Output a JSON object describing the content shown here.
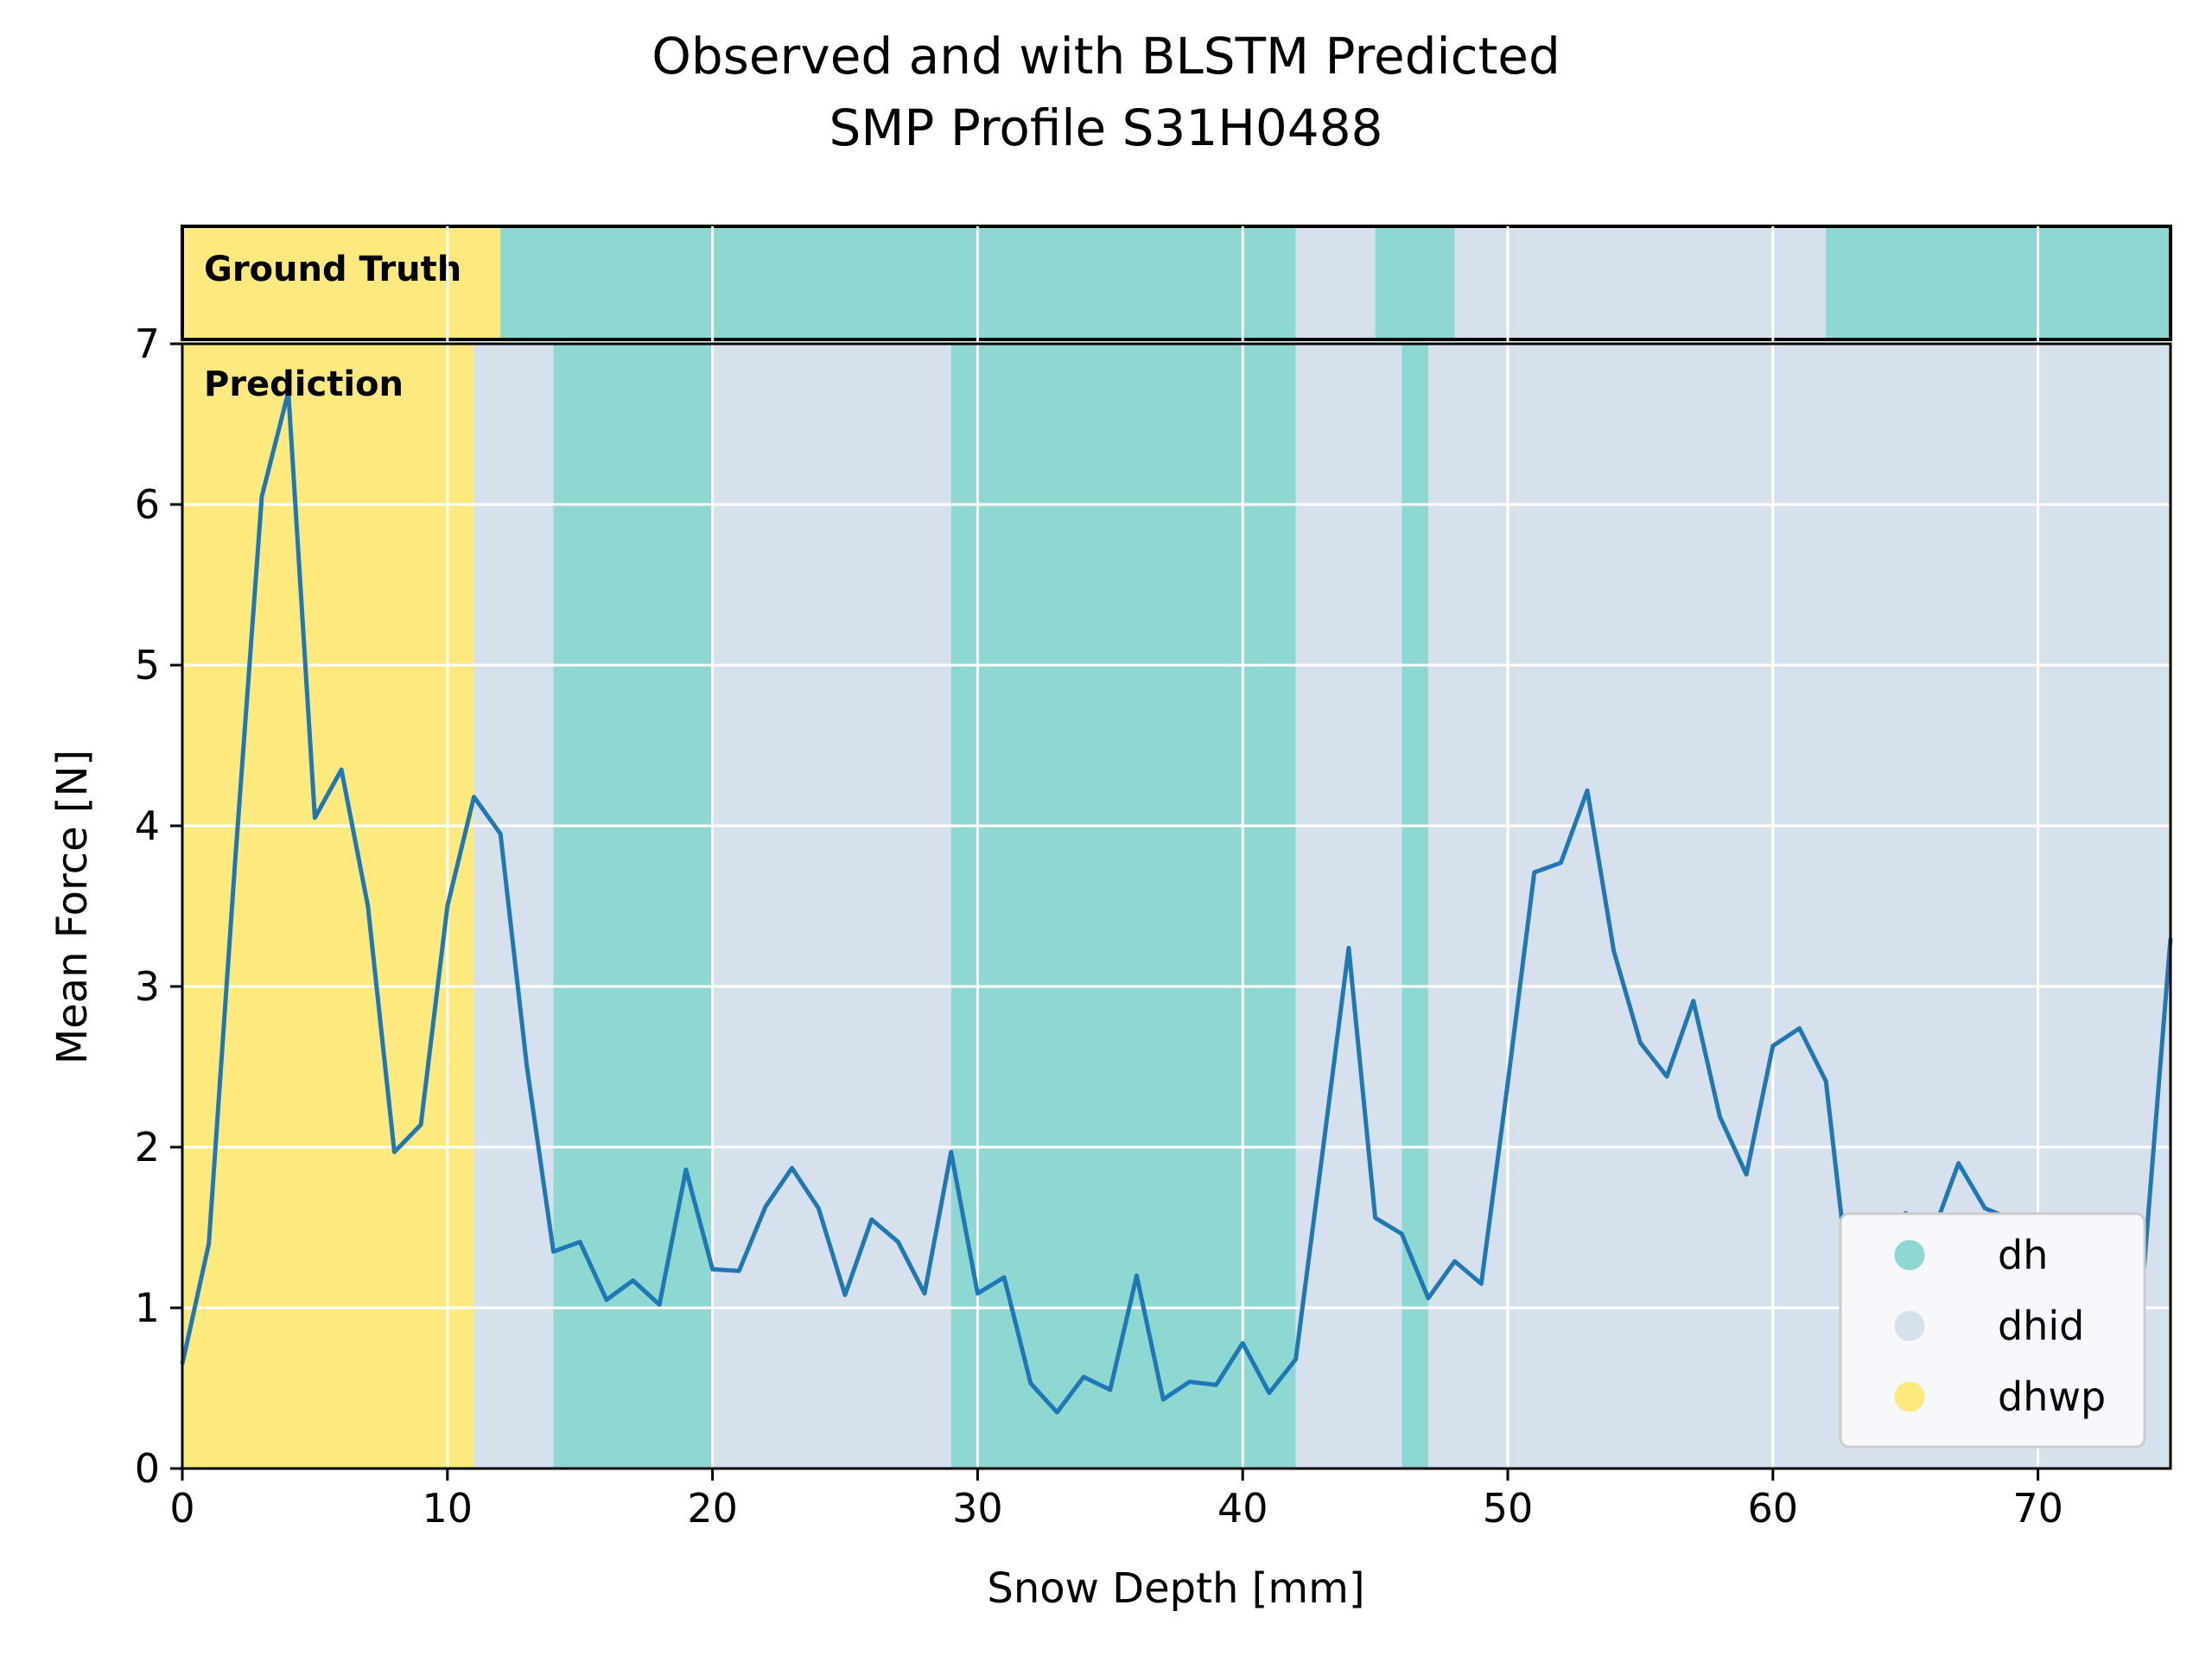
{
  "chart_data": {
    "type": "line",
    "title_lines": [
      "Observed and with BLSTM Predicted",
      "SMP Profile S31H0488"
    ],
    "xlabel": "Snow Depth [mm]",
    "ylabel": "Mean Force [N]",
    "xlim": [
      0,
      75
    ],
    "ylim": [
      0,
      7
    ],
    "xticks": [
      0,
      10,
      20,
      30,
      40,
      50,
      60,
      70
    ],
    "yticks": [
      0,
      1,
      2,
      3,
      4,
      5,
      6,
      7
    ],
    "grid": true,
    "legend_position": "lower-right",
    "panel_labels": {
      "ground_truth": "Ground Truth",
      "prediction": "Prediction"
    },
    "classes": [
      {
        "name": "dh",
        "color": "#8fd8d2"
      },
      {
        "name": "dhid",
        "color": "#d7e1ee"
      },
      {
        "name": "dhwp",
        "color": "#fde97e"
      }
    ],
    "ground_truth_segments": [
      {
        "start": 0,
        "end": 12,
        "class": "dhwp"
      },
      {
        "start": 12,
        "end": 42,
        "class": "dh"
      },
      {
        "start": 42,
        "end": 45,
        "class": "dhid"
      },
      {
        "start": 45,
        "end": 48,
        "class": "dh"
      },
      {
        "start": 48,
        "end": 62,
        "class": "dhid"
      },
      {
        "start": 62,
        "end": 75,
        "class": "dh"
      }
    ],
    "prediction_segments": [
      {
        "start": 0,
        "end": 11,
        "class": "dhwp"
      },
      {
        "start": 11,
        "end": 14,
        "class": "dhid"
      },
      {
        "start": 14,
        "end": 20,
        "class": "dh"
      },
      {
        "start": 20,
        "end": 29,
        "class": "dhid"
      },
      {
        "start": 29,
        "end": 42,
        "class": "dh"
      },
      {
        "start": 42,
        "end": 46,
        "class": "dhid"
      },
      {
        "start": 46,
        "end": 47,
        "class": "dh"
      },
      {
        "start": 47,
        "end": 75,
        "class": "dhid"
      }
    ],
    "series": [
      {
        "color": "#1f77b4",
        "x": [
          0,
          1,
          2,
          3,
          4,
          5,
          6,
          7,
          8,
          9,
          10,
          11,
          12,
          13,
          14,
          15,
          16,
          17,
          18,
          19,
          20,
          21,
          22,
          23,
          24,
          25,
          26,
          27,
          28,
          29,
          30,
          31,
          32,
          33,
          34,
          35,
          36,
          37,
          38,
          39,
          40,
          41,
          42,
          43,
          44,
          45,
          46,
          47,
          48,
          49,
          50,
          51,
          52,
          53,
          54,
          55,
          56,
          57,
          58,
          59,
          60,
          61,
          62,
          63,
          64,
          65,
          66,
          67,
          68,
          69,
          70,
          71,
          72,
          73,
          74,
          75
        ],
        "y": [
          0.65,
          1.4,
          3.8,
          6.05,
          6.7,
          4.05,
          4.35,
          3.5,
          1.97,
          2.14,
          3.5,
          4.18,
          3.95,
          2.5,
          1.35,
          1.41,
          1.05,
          1.17,
          1.02,
          1.86,
          1.24,
          1.23,
          1.63,
          1.87,
          1.62,
          1.08,
          1.55,
          1.41,
          1.09,
          1.97,
          1.09,
          1.19,
          0.53,
          0.35,
          0.57,
          0.49,
          1.2,
          0.43,
          0.54,
          0.52,
          0.78,
          0.47,
          0.68,
          1.95,
          3.24,
          1.56,
          1.46,
          1.06,
          1.29,
          1.15,
          2.4,
          3.71,
          3.77,
          4.22,
          3.22,
          2.65,
          2.44,
          2.91,
          2.19,
          1.83,
          2.63,
          2.74,
          2.41,
          0.97,
          1.09,
          1.59,
          1.45,
          1.9,
          1.62,
          1.55,
          1.2,
          0.75,
          1.27,
          1.08,
          1.25,
          3.3
        ]
      }
    ]
  }
}
